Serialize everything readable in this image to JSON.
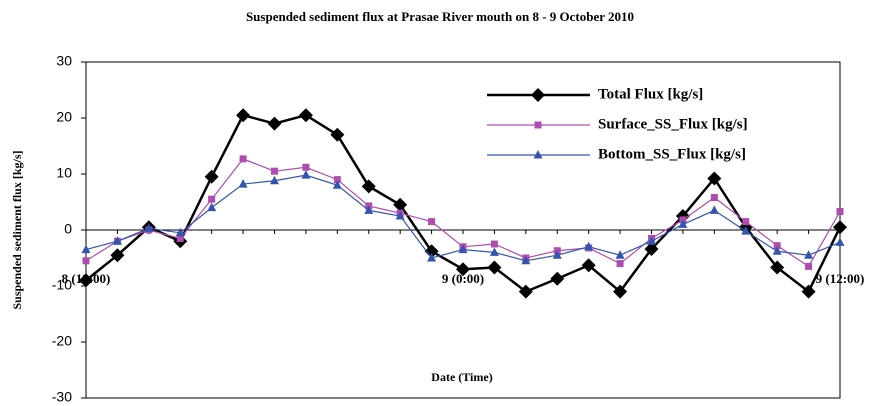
{
  "chart_data": {
    "type": "line",
    "title": "Suspended sediment flux at Prasae River mouth on 8 - 9 October 2010",
    "x_label": "Date (Time)",
    "y_label": "Suspended sediment flux [kg/s]",
    "categories": [
      "8 (18:00)",
      null,
      null,
      null,
      null,
      null,
      null,
      null,
      null,
      null,
      null,
      null,
      "9 (0:00)",
      null,
      null,
      null,
      null,
      null,
      null,
      null,
      null,
      null,
      null,
      null,
      "9 (12:00)"
    ],
    "series": [
      {
        "name": "Total Flux [kg/s]",
        "color": "#000000",
        "marker": "diamond",
        "values": [
          -9,
          -4.5,
          0.5,
          -2,
          9.5,
          20.5,
          19,
          20.5,
          17,
          7.8,
          4.5,
          -3.8,
          -7,
          -6.7,
          -11,
          -8.7,
          -6.3,
          -11,
          -3.4,
          2.5,
          9.2,
          0.5,
          -6.7,
          -11,
          0.5
        ]
      },
      {
        "name": "Surface_SS_Flux [kg/s]",
        "color": "#b04cb0",
        "marker": "square",
        "values": [
          -5.5,
          -2,
          0,
          -1.5,
          5.5,
          12.7,
          10.5,
          11.2,
          9,
          4.3,
          3,
          1.5,
          -3,
          -2.5,
          -5,
          -3.7,
          -3.2,
          -6,
          -1.5,
          1.8,
          5.8,
          1.5,
          -2.8,
          -6.5,
          3.3
        ]
      },
      {
        "name": "Bottom_SS_Flux [kg/s]",
        "color": "#3355b0",
        "marker": "triangle",
        "values": [
          -3.5,
          -2,
          0.3,
          -0.5,
          4,
          8.2,
          8.8,
          9.8,
          8,
          3.5,
          2.5,
          -5,
          -3.5,
          -4,
          -5.5,
          -4.5,
          -3,
          -4.5,
          -2,
          1,
          3.5,
          -0.2,
          -3.8,
          -4.5,
          -2.2
        ]
      }
    ],
    "ylim": [
      -30,
      30
    ],
    "yticks": [
      -30,
      -20,
      -10,
      0,
      10,
      20,
      30
    ],
    "legend": "upper right"
  }
}
